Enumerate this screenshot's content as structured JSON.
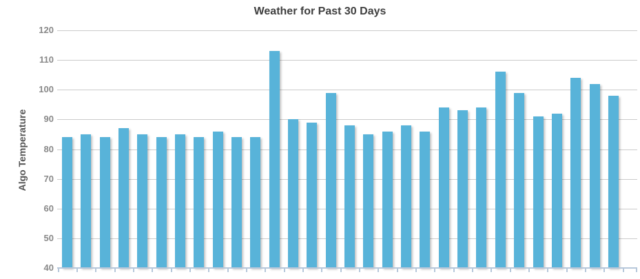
{
  "chart_data": {
    "type": "bar",
    "title": "Weather for Past 30 Days",
    "ylabel": "Algo Temperature",
    "xlabel": "",
    "num_bars": 30,
    "values": [
      84,
      85,
      84,
      87,
      85,
      84,
      85,
      84,
      86,
      84,
      84,
      113,
      90,
      89,
      99,
      88,
      85,
      86,
      88,
      86,
      94,
      93,
      94,
      106,
      99,
      91,
      92,
      104,
      102,
      98
    ],
    "yticks": [
      120,
      110,
      100,
      90,
      80,
      70,
      60,
      50,
      40
    ],
    "ylim": [
      40,
      120
    ],
    "x_tick_labels_visible": false,
    "grid": true,
    "legend": false,
    "colors": {
      "bar": "#58b3d9",
      "grid": "#cbcbcb",
      "axis": "#b6c7da",
      "title_text": "#3f3f3f",
      "tick_label": "#898989",
      "axis_title": "#555555"
    }
  }
}
